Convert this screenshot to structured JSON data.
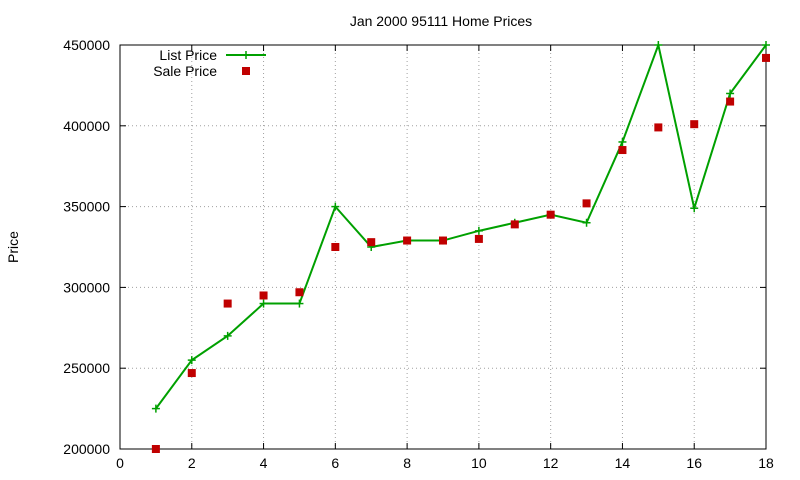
{
  "chart_data": {
    "type": "line",
    "title": "Jan 2000 95111 Home Prices",
    "xlabel": "",
    "ylabel": "Price",
    "xlim": [
      0,
      18
    ],
    "ylim": [
      200000,
      450000
    ],
    "x_ticks": [
      0,
      2,
      4,
      6,
      8,
      10,
      12,
      14,
      16,
      18
    ],
    "y_ticks": [
      200000,
      250000,
      300000,
      350000,
      400000,
      450000
    ],
    "x_tick_labels": [
      "0",
      "2",
      "4",
      "6",
      "8",
      "10",
      "12",
      "14",
      "16",
      "18"
    ],
    "y_tick_labels": [
      "200000",
      "250000",
      "300000",
      "350000",
      "400000",
      "450000"
    ],
    "grid": true,
    "legend_position": "top-left",
    "x": [
      1,
      2,
      3,
      4,
      5,
      6,
      7,
      8,
      9,
      10,
      11,
      12,
      13,
      14,
      15,
      16,
      17,
      18
    ],
    "series": [
      {
        "name": "List Price",
        "style": "line+cross",
        "color": "#00a000",
        "values": [
          225000,
          255000,
          270000,
          290000,
          290000,
          350000,
          325000,
          329000,
          329000,
          335000,
          340000,
          345000,
          340000,
          390000,
          450000,
          349000,
          420000,
          450000
        ]
      },
      {
        "name": "Sale Price",
        "style": "square",
        "color": "#c00000",
        "values": [
          200000,
          247000,
          290000,
          295000,
          297000,
          325000,
          328000,
          329000,
          329000,
          330000,
          339000,
          345000,
          352000,
          385000,
          399000,
          401000,
          415000,
          442000
        ]
      }
    ]
  }
}
